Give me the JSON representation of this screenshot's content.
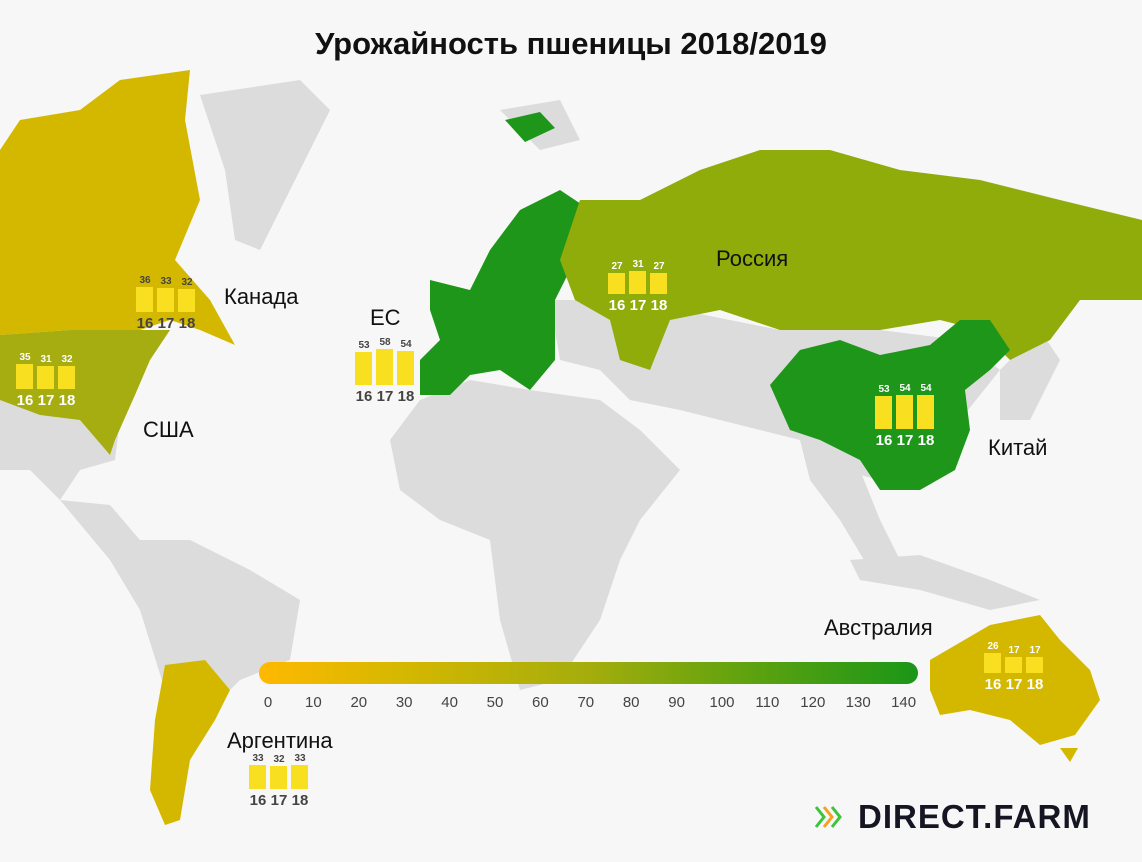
{
  "title": "Урожайность пшеницы 2018/2019",
  "colors": {
    "background": "#f7f7f7",
    "land_other": "#dcdcdc",
    "canada_argentina_australia": "#d4b800",
    "usa": "#a5ad10",
    "russia": "#8fac0a",
    "eu_china": "#1e961a",
    "bar": "#f8e020"
  },
  "years": [
    "16",
    "17",
    "18"
  ],
  "regions": [
    {
      "id": "canada",
      "label": "Канада",
      "values": [
        36,
        33,
        32
      ],
      "text": "dark"
    },
    {
      "id": "usa",
      "label": "США",
      "values": [
        35,
        31,
        32
      ],
      "text": "light"
    },
    {
      "id": "eu",
      "label": "ЕС",
      "values": [
        53,
        58,
        54
      ],
      "text": "dark"
    },
    {
      "id": "russia",
      "label": "Россия",
      "values": [
        27,
        31,
        27
      ],
      "text": "light"
    },
    {
      "id": "china",
      "label": "Китай",
      "values": [
        53,
        54,
        54
      ],
      "text": "light"
    },
    {
      "id": "australia",
      "label": "Австралия",
      "values": [
        26,
        17,
        17
      ],
      "text": "light"
    },
    {
      "id": "argentina",
      "label": "Аргентина",
      "values": [
        33,
        32,
        33
      ],
      "text": "dark"
    }
  ],
  "legend_scale": {
    "min": 0,
    "max": 140,
    "ticks": [
      "0",
      "10",
      "20",
      "30",
      "40",
      "50",
      "60",
      "70",
      "80",
      "90",
      "100",
      "110",
      "120",
      "130",
      "140"
    ]
  },
  "logo": {
    "text": "DIRECT.FARM",
    "icon": "chevrons-right-icon"
  }
}
